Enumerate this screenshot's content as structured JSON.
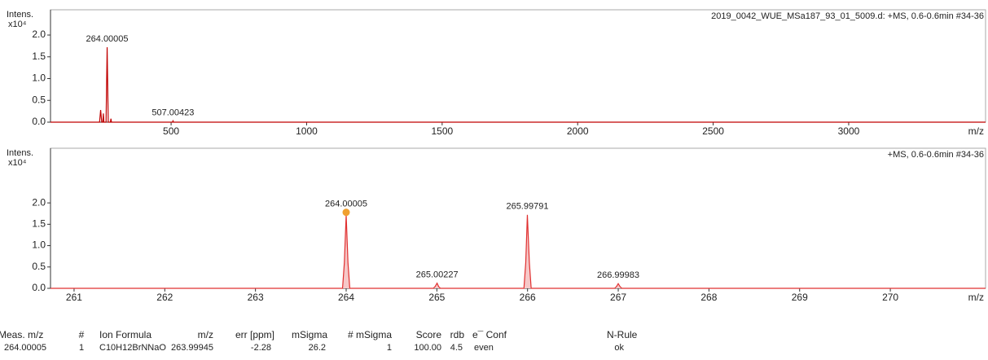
{
  "chart_data": [
    {
      "type": "line",
      "title": "2019_0042_WUE_MSa187_93_01_5009.d: +MS, 0.6-0.6min #34-36",
      "y_label": "Intens.",
      "y_scale": "x10⁴",
      "x_label": "m/z",
      "color": "#c00000",
      "x": [
        55,
        236,
        240,
        244,
        248,
        250,
        252,
        260,
        264,
        268,
        276,
        278,
        280,
        505,
        507,
        509,
        3505
      ],
      "values": [
        0,
        0,
        0.28,
        0,
        0,
        0.2,
        0,
        0,
        1.72,
        0,
        0,
        0.08,
        0,
        0,
        0.03,
        0,
        0
      ],
      "xlim": [
        55,
        3505
      ],
      "ylim": [
        0,
        2.58
      ],
      "xticks": [
        500,
        1000,
        1500,
        2000,
        2500,
        3000
      ],
      "yticks": [
        {
          "value": 0,
          "label": "0.0"
        },
        0.5,
        {
          "value": 1,
          "label": "1.0"
        },
        1.5,
        {
          "value": 2,
          "label": "2.0"
        }
      ],
      "peak_labels": [
        {
          "x": 264.00005,
          "y": 1.72,
          "label": "264.00005"
        },
        {
          "x": 507.00423,
          "y": 0.03,
          "label": "507.00423"
        }
      ]
    },
    {
      "type": "line",
      "title": "+MS, 0.6-0.6min #34-36",
      "y_label": "Intens.",
      "y_scale": "x10⁴",
      "x_label": "m/z",
      "color": "#e03030",
      "fill": "#f6c8c8",
      "x": [
        260.74,
        263.96,
        263.98,
        264.00005,
        264.02,
        264.04,
        264.96,
        264.98,
        265.00227,
        265.02,
        265.04,
        265.96,
        265.98,
        265.99791,
        266.02,
        266.04,
        266.96,
        266.98,
        266.99983,
        267.02,
        267.04,
        271.05
      ],
      "values": [
        0,
        0,
        0.6,
        1.72,
        0.6,
        0,
        0,
        0.04,
        0.12,
        0.04,
        0,
        0,
        0.6,
        1.72,
        0.6,
        0,
        0,
        0.04,
        0.11,
        0.04,
        0,
        0
      ],
      "xlim": [
        260.74,
        271.05
      ],
      "ylim": [
        0,
        3.28
      ],
      "xticks": [
        261,
        262,
        263,
        264,
        265,
        266,
        267,
        268,
        269,
        270
      ],
      "yticks": [
        {
          "value": 0,
          "label": "0.0"
        },
        0.5,
        {
          "value": 1,
          "label": "1.0"
        },
        1.5,
        {
          "value": 2,
          "label": "2.0"
        }
      ],
      "highlight": {
        "x": 264.00005,
        "y": 1.78,
        "color": "#f0a030"
      },
      "peak_labels": [
        {
          "x": 264.00005,
          "y": 1.78,
          "label": "264.00005"
        },
        {
          "x": 265.00227,
          "y": 0.12,
          "label": "265.00227"
        },
        {
          "x": 265.99791,
          "y": 1.72,
          "label": "265.99791"
        },
        {
          "x": 266.99983,
          "y": 0.11,
          "label": "266.99983"
        }
      ]
    }
  ],
  "table": {
    "header": [
      "Meas. m/z",
      "#",
      "Ion Formula",
      "m/z",
      "err [ppm]",
      "mSigma",
      "# mSigma",
      "Score",
      "rdb",
      "e¯ Conf",
      "N-Rule"
    ],
    "rows": [
      [
        "264.00005",
        "1",
        "C10H12BrNNaO",
        "263.99945",
        "-2.28",
        "26.2",
        "1",
        "100.00",
        "4.5",
        "even",
        "ok"
      ]
    ]
  }
}
